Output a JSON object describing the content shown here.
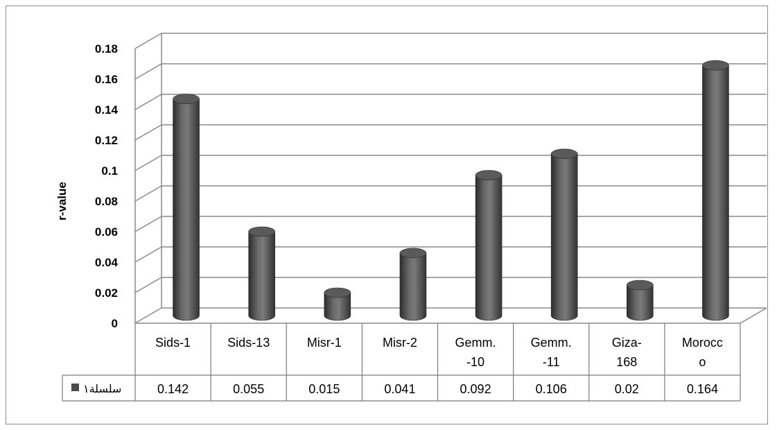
{
  "chart_data": {
    "type": "bar",
    "ylabel": "r-value",
    "xlabel": "",
    "ylim": [
      0,
      0.18
    ],
    "yticks": [
      "0",
      "0.02",
      "0.04",
      "0.06",
      "0.08",
      "0.1",
      "0.12",
      "0.14",
      "0.16",
      "0.18"
    ],
    "categories": [
      "Sids-1",
      "Sids-13",
      "Misr-1",
      "Misr-2",
      "Gemm.-10",
      "Gemm.-11",
      "Giza-168",
      "Morocco"
    ],
    "category_label_lines": [
      [
        "Sids-1"
      ],
      [
        "Sids-13"
      ],
      [
        "Misr-1"
      ],
      [
        "Misr-2"
      ],
      [
        "Gemm.",
        "-10"
      ],
      [
        "Gemm.",
        "-11"
      ],
      [
        "Giza-",
        "168"
      ],
      [
        "Morocc",
        "o"
      ]
    ],
    "series": [
      {
        "name": "سلسلة١",
        "values": [
          0.142,
          0.055,
          0.015,
          0.041,
          0.092,
          0.106,
          0.02,
          0.164
        ],
        "value_labels": [
          "0.142",
          "0.055",
          "0.015",
          "0.041",
          "0.092",
          "0.106",
          "0.02",
          "0.164"
        ],
        "color": "#4a4a4a"
      }
    ],
    "grid": true,
    "style": "3d-cylinder",
    "legend": "data-table"
  }
}
